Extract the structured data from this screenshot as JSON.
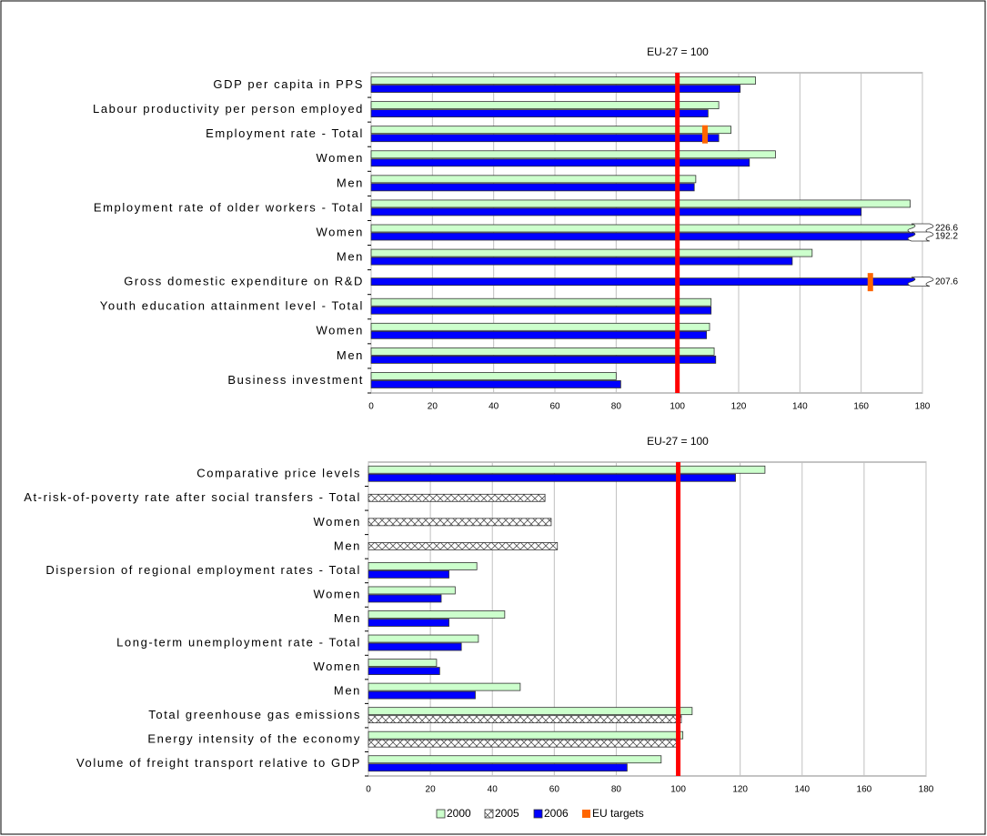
{
  "chart_data": {
    "type": "bar",
    "series": [
      {
        "name": "2000",
        "color": "#ccffcc"
      },
      {
        "name": "2005",
        "color": "#ffffff",
        "pattern": "crosshatch"
      },
      {
        "name": "2006",
        "color": "#0000ff"
      },
      {
        "name": "EU targets",
        "color": "#ff6600",
        "marker": "target"
      }
    ],
    "panels": [
      {
        "title": "EU-27 = 100",
        "categories": [
          "GDP per capita in PPS",
          "Labour productivity per person employed",
          "Employment rate - Total",
          "Women",
          "Men",
          "Employment rate of older workers - Total",
          "Women",
          "Men",
          "Gross domestic expenditure on R&D",
          "Youth education attainment level - Total",
          "Women",
          "Men",
          "Business investment"
        ],
        "values": [
          [
            125.5,
            113.5,
            117.5,
            132,
            106,
            176,
            226.6,
            144,
            null,
            111,
            110.5,
            112,
            80
          ],
          [
            null,
            null,
            null,
            null,
            null,
            null,
            null,
            null,
            null,
            null,
            null,
            null,
            null
          ],
          [
            120.5,
            110,
            113.5,
            123.5,
            105.5,
            160,
            192.2,
            137.5,
            207.6,
            111,
            109.5,
            112.5,
            81.5
          ],
          [
            null,
            null,
            109,
            null,
            null,
            null,
            null,
            null,
            163,
            null,
            null,
            null,
            null
          ]
        ],
        "reference": 100,
        "xlim": [
          0,
          180
        ],
        "xticks": [
          0,
          20,
          40,
          60,
          80,
          100,
          120,
          140,
          160,
          180
        ],
        "grid": true
      },
      {
        "title": "EU-27 = 100",
        "categories": [
          "Comparative price levels",
          "At-risk-of-poverty rate after social transfers - Total",
          "Women",
          "Men",
          "Dispersion of regional employment rates - Total",
          "Women",
          "Men",
          "Long-term unemployment rate - Total",
          "Women",
          "Men",
          "Total greenhouse gas emissions",
          "Energy intensity of the economy",
          "Volume of freight transport relative to GDP"
        ],
        "values": [
          [
            128,
            null,
            null,
            null,
            35,
            28,
            44,
            35.5,
            22,
            49,
            104.5,
            101.5,
            94.5
          ],
          [
            null,
            57,
            59,
            61,
            null,
            null,
            null,
            null,
            null,
            null,
            101,
            100,
            null
          ],
          [
            118.5,
            null,
            null,
            null,
            26,
            23.5,
            26,
            30,
            23,
            34.5,
            null,
            null,
            83.5
          ],
          [
            null,
            null,
            null,
            null,
            null,
            null,
            null,
            null,
            null,
            null,
            null,
            null,
            null
          ]
        ],
        "reference": 100,
        "xlim": [
          0,
          180
        ],
        "xticks": [
          0,
          20,
          40,
          60,
          80,
          100,
          120,
          140,
          160,
          180
        ],
        "grid": true
      }
    ]
  }
}
